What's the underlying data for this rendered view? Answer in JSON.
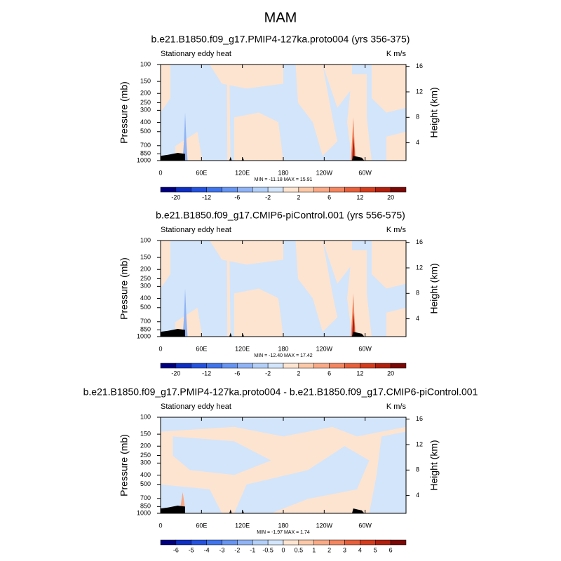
{
  "title": "MAM",
  "chart_data": [
    {
      "type": "contour",
      "title": "b.e21.B1850.f09_g17.PMIP4-127ka.proto004 (yrs 356-375)",
      "left_label": "Stationary eddy heat",
      "right_label": "K m/s",
      "y_label": "Pressure (mb)",
      "y2_label": "Height (km)",
      "xlim": [
        0,
        360
      ],
      "xticks": [
        0,
        {
          "value": 60,
          "label": "60E"
        },
        {
          "value": 120,
          "label": "120E"
        },
        180,
        {
          "value": 240,
          "label": "120W"
        },
        {
          "value": 300,
          "label": "60W"
        }
      ],
      "ylim": [
        1000,
        100
      ],
      "ylog": true,
      "yticks": [
        100,
        150,
        200,
        250,
        300,
        400,
        500,
        700,
        850,
        1000
      ],
      "y2lim": [
        1.2,
        16.3
      ],
      "y2ticks": [
        4,
        8,
        12,
        16
      ],
      "stats": "MIN = -11.18  MAX =  15.91",
      "colorbar": {
        "levels": [
          -20,
          null,
          -12,
          null,
          -6,
          null,
          -2,
          null,
          2,
          null,
          6,
          null,
          12,
          null,
          20
        ],
        "colors": [
          "#00007f",
          "#0e2fbf",
          "#2552dc",
          "#4074ea",
          "#6694f0",
          "#8fb3f4",
          "#b3cff7",
          "#d3e5fa",
          "#fde4d0",
          "#fbc8a8",
          "#f8a985",
          "#f28660",
          "#e6603c",
          "#d23d1e",
          "#b0200e",
          "#7a0805"
        ]
      }
    },
    {
      "type": "contour",
      "title": "b.e21.B1850.f09_g17.CMIP6-piControl.001 (yrs 556-575)",
      "left_label": "Stationary eddy heat",
      "right_label": "K m/s",
      "y_label": "Pressure (mb)",
      "y2_label": "Height (km)",
      "xlim": [
        0,
        360
      ],
      "xticks": [
        0,
        {
          "value": 60,
          "label": "60E"
        },
        {
          "value": 120,
          "label": "120E"
        },
        180,
        {
          "value": 240,
          "label": "120W"
        },
        {
          "value": 300,
          "label": "60W"
        }
      ],
      "ylim": [
        1000,
        100
      ],
      "ylog": true,
      "yticks": [
        100,
        150,
        200,
        250,
        300,
        400,
        500,
        700,
        850,
        1000
      ],
      "y2lim": [
        1.2,
        16.3
      ],
      "y2ticks": [
        4,
        8,
        12,
        16
      ],
      "stats": "MIN = -12.40  MAX =  17.42",
      "colorbar": {
        "levels": [
          -20,
          null,
          -12,
          null,
          -6,
          null,
          -2,
          null,
          2,
          null,
          6,
          null,
          12,
          null,
          20
        ],
        "colors": [
          "#00007f",
          "#0e2fbf",
          "#2552dc",
          "#4074ea",
          "#6694f0",
          "#8fb3f4",
          "#b3cff7",
          "#d3e5fa",
          "#fde4d0",
          "#fbc8a8",
          "#f8a985",
          "#f28660",
          "#e6603c",
          "#d23d1e",
          "#b0200e",
          "#7a0805"
        ]
      }
    },
    {
      "type": "contour",
      "title": "b.e21.B1850.f09_g17.PMIP4-127ka.proto004 - b.e21.B1850.f09_g17.CMIP6-piControl.001",
      "left_label": "Stationary eddy heat",
      "right_label": "K m/s",
      "y_label": "Pressure (mb)",
      "y2_label": "Height (km)",
      "xlim": [
        0,
        360
      ],
      "xticks": [
        0,
        {
          "value": 60,
          "label": "60E"
        },
        {
          "value": 120,
          "label": "120E"
        },
        180,
        {
          "value": 240,
          "label": "120W"
        },
        {
          "value": 300,
          "label": "60W"
        }
      ],
      "ylim": [
        1000,
        100
      ],
      "ylog": true,
      "yticks": [
        100,
        150,
        200,
        250,
        300,
        400,
        500,
        700,
        850,
        1000
      ],
      "y2lim": [
        1.2,
        16.3
      ],
      "y2ticks": [
        4,
        8,
        12,
        16
      ],
      "stats": "MIN = -1.97  MAX =  1.74",
      "colorbar": {
        "levels": [
          -6,
          -5,
          -4,
          -3,
          -2,
          -1,
          -0.5,
          0,
          0.5,
          1,
          2,
          3,
          4,
          5,
          6
        ],
        "colors": [
          "#00007f",
          "#0e2fbf",
          "#2552dc",
          "#4074ea",
          "#6694f0",
          "#8fb3f4",
          "#b3cff7",
          "#d3e5fa",
          "#fde4d0",
          "#fbc8a8",
          "#f8a985",
          "#f28660",
          "#e6603c",
          "#d23d1e",
          "#b0200e",
          "#7a0805"
        ]
      }
    }
  ]
}
